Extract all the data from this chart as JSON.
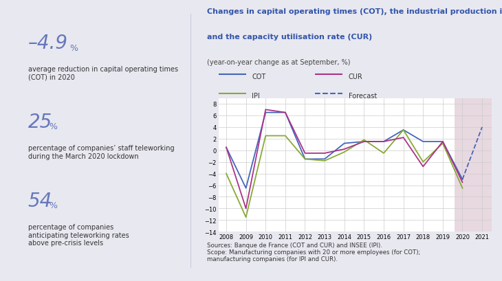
{
  "background_color": "#e8e8f0",
  "chart_bg": "#ffffff",
  "forecast_bg": "#e8d8e0",
  "title_line1": "Changes in capital operating times (COT), the industrial production index (IPI)",
  "title_line2": "and the capacity utilisation rate (CUR)",
  "title_color": "#3355aa",
  "subtitle": "(year-on-year change as at September, %)",
  "subtitle_color": "#444444",
  "source_text": "Sources: Banque de France (COT and CUR) and INSEE (IPI).\nScope: Manufacturing companies with 20 or more employees (for COT);\nmanufacturing companies (for IPI and CUR).",
  "left_stats": [
    {
      "value": "–4.9",
      "unit": "%",
      "desc": "average reduction in capital operating times\n(COT) in 2020"
    },
    {
      "value": "25",
      "unit": "%",
      "desc": "percentage of companies’ staff teleworking\nduring the March 2020 lockdown"
    },
    {
      "value": "54",
      "unit": "%",
      "desc": "percentage of companies\nanticipating teleworking rates\nabove pre-crisis levels"
    }
  ],
  "stat_color": "#6677bb",
  "desc_color": "#333333",
  "years": [
    2008,
    2009,
    2010,
    2011,
    2012,
    2013,
    2014,
    2015,
    2016,
    2017,
    2018,
    2019,
    2020,
    2021
  ],
  "COT": [
    0.5,
    -6.5,
    6.5,
    6.5,
    -1.5,
    -1.5,
    1.2,
    1.5,
    1.5,
    3.5,
    1.5,
    1.5,
    -5.0,
    null
  ],
  "IPI": [
    -4.0,
    -11.5,
    2.5,
    2.5,
    -1.5,
    -1.8,
    -0.3,
    1.8,
    -0.5,
    3.5,
    -2.0,
    1.2,
    -6.5,
    null
  ],
  "CUR": [
    0.5,
    -10.0,
    7.0,
    6.5,
    -0.5,
    -0.5,
    0.2,
    1.5,
    1.5,
    2.2,
    -2.8,
    1.5,
    -5.5,
    null
  ],
  "Forecast": [
    null,
    null,
    null,
    null,
    null,
    null,
    null,
    null,
    null,
    null,
    null,
    null,
    -5.0,
    4.0
  ],
  "ylim": [
    -14,
    9
  ],
  "yticks": [
    -14,
    -12,
    -10,
    -8,
    -6,
    -4,
    -2,
    0,
    2,
    4,
    6,
    8
  ],
  "colors": {
    "COT": "#4466bb",
    "IPI": "#88aa33",
    "CUR": "#aa3388",
    "Forecast": "#4466bb"
  },
  "legend": [
    {
      "label": "COT",
      "color": "#4466bb",
      "linestyle": "-"
    },
    {
      "label": "CUR",
      "color": "#aa3388",
      "linestyle": "-"
    },
    {
      "label": "IPI",
      "color": "#88aa33",
      "linestyle": "-"
    },
    {
      "label": "Forecast",
      "color": "#4466bb",
      "linestyle": "--"
    }
  ]
}
